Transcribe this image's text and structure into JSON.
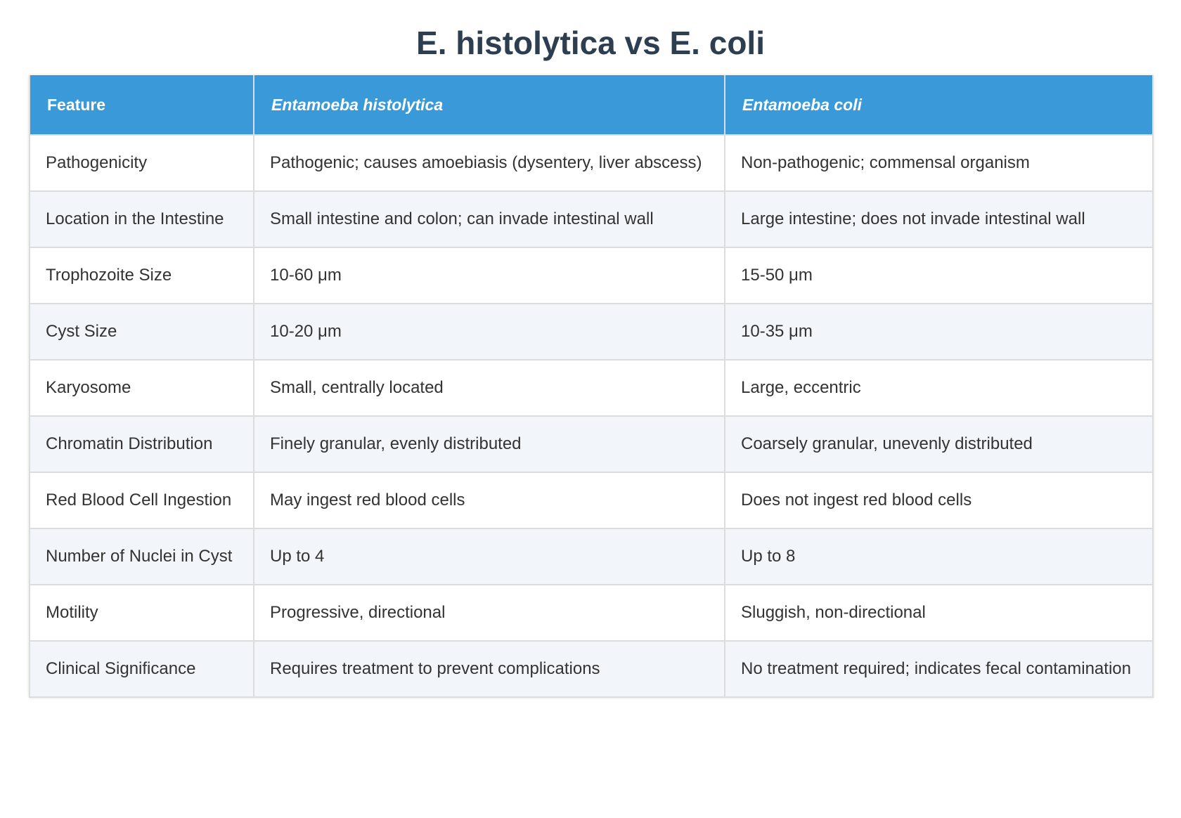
{
  "header": {
    "title": "E. histolytica vs E. coli"
  },
  "table": {
    "columns": [
      "Feature",
      "Entamoeba histolytica",
      "Entamoeba coli"
    ],
    "rows": [
      [
        "Pathogenicity",
        "Pathogenic; causes amoebiasis (dysentery, liver abscess)",
        "Non-pathogenic; commensal organism"
      ],
      [
        "Location in the Intestine",
        "Small intestine and colon; can invade intestinal wall",
        "Large intestine; does not invade intestinal wall"
      ],
      [
        "Trophozoite Size",
        "10-60 μm",
        "15-50 μm"
      ],
      [
        "Cyst Size",
        "10-20 μm",
        "10-35 μm"
      ],
      [
        "Karyosome",
        "Small, centrally located",
        "Large, eccentric"
      ],
      [
        "Chromatin Distribution",
        "Finely granular, evenly distributed",
        "Coarsely granular, unevenly distributed"
      ],
      [
        "Red Blood Cell Ingestion",
        "May ingest red blood cells",
        "Does not ingest red blood cells"
      ],
      [
        "Number of Nuclei in Cyst",
        "Up to 4",
        "Up to 8"
      ],
      [
        "Motility",
        "Progressive, directional",
        "Sluggish, non-directional"
      ],
      [
        "Clinical Significance",
        "Requires treatment to prevent complications",
        "No treatment required; indicates fecal contamination"
      ]
    ]
  }
}
